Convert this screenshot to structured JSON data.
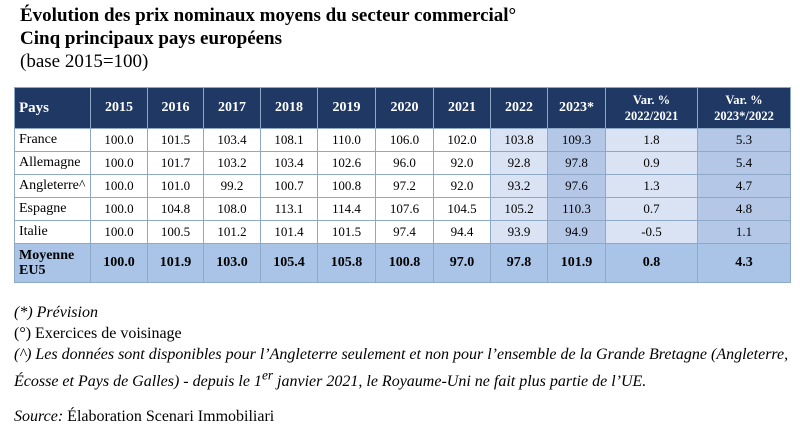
{
  "title": {
    "line1": "Évolution des prix nominaux moyens du secteur commercial°",
    "line2": "Cinq principaux pays européens",
    "line3": "(base 2015=100)"
  },
  "table": {
    "header": [
      "Pays",
      "2015",
      "2016",
      "2017",
      "2018",
      "2019",
      "2020",
      "2021",
      "2022",
      "2023*",
      [
        "Var. %",
        "2022/2021"
      ],
      [
        "Var. %",
        "2023*/2022"
      ]
    ],
    "rows": [
      [
        "France",
        "100.0",
        "101.5",
        "103.4",
        "108.1",
        "110.0",
        "106.0",
        "102.0",
        "103.8",
        "109.3",
        "1.8",
        "5.3"
      ],
      [
        "Allemagne",
        "100.0",
        "101.7",
        "103.2",
        "103.4",
        "102.6",
        "96.0",
        "92.0",
        "92.8",
        "97.8",
        "0.9",
        "5.4"
      ],
      [
        "Angleterre^",
        "100.0",
        "101.0",
        "99.2",
        "100.7",
        "100.8",
        "97.2",
        "92.0",
        "93.2",
        "97.6",
        "1.3",
        "4.7"
      ],
      [
        "Espagne",
        "100.0",
        "104.8",
        "108.0",
        "113.1",
        "114.4",
        "107.6",
        "104.5",
        "105.2",
        "110.3",
        "0.7",
        "4.8"
      ],
      [
        "Italie",
        "100.0",
        "100.5",
        "101.2",
        "101.4",
        "101.5",
        "97.4",
        "94.4",
        "93.9",
        "94.9",
        "-0.5",
        "1.1"
      ]
    ],
    "footer": [
      "Moyenne EU5",
      "100.0",
      "101.9",
      "103.0",
      "105.4",
      "105.8",
      "100.8",
      "97.0",
      "97.8",
      "101.9",
      "0.8",
      "4.3"
    ]
  },
  "notes": {
    "forecast": "(*) Prévision",
    "neighbour": "(°) Exercices de voisinage",
    "england": {
      "before": "(^) Les données sont disponibles pour l’Angleterre seulement et non pour l’ensemble de la Grande Bretagne (Angleterre, Écosse et Pays de Galles) - depuis le 1",
      "sup": "er",
      "after": " janvier 2021, le Royaume-Uni ne fait plus partie de l’UE."
    },
    "source_label": "Source:",
    "source": " Élaboration Scenari Immobiliari"
  }
}
